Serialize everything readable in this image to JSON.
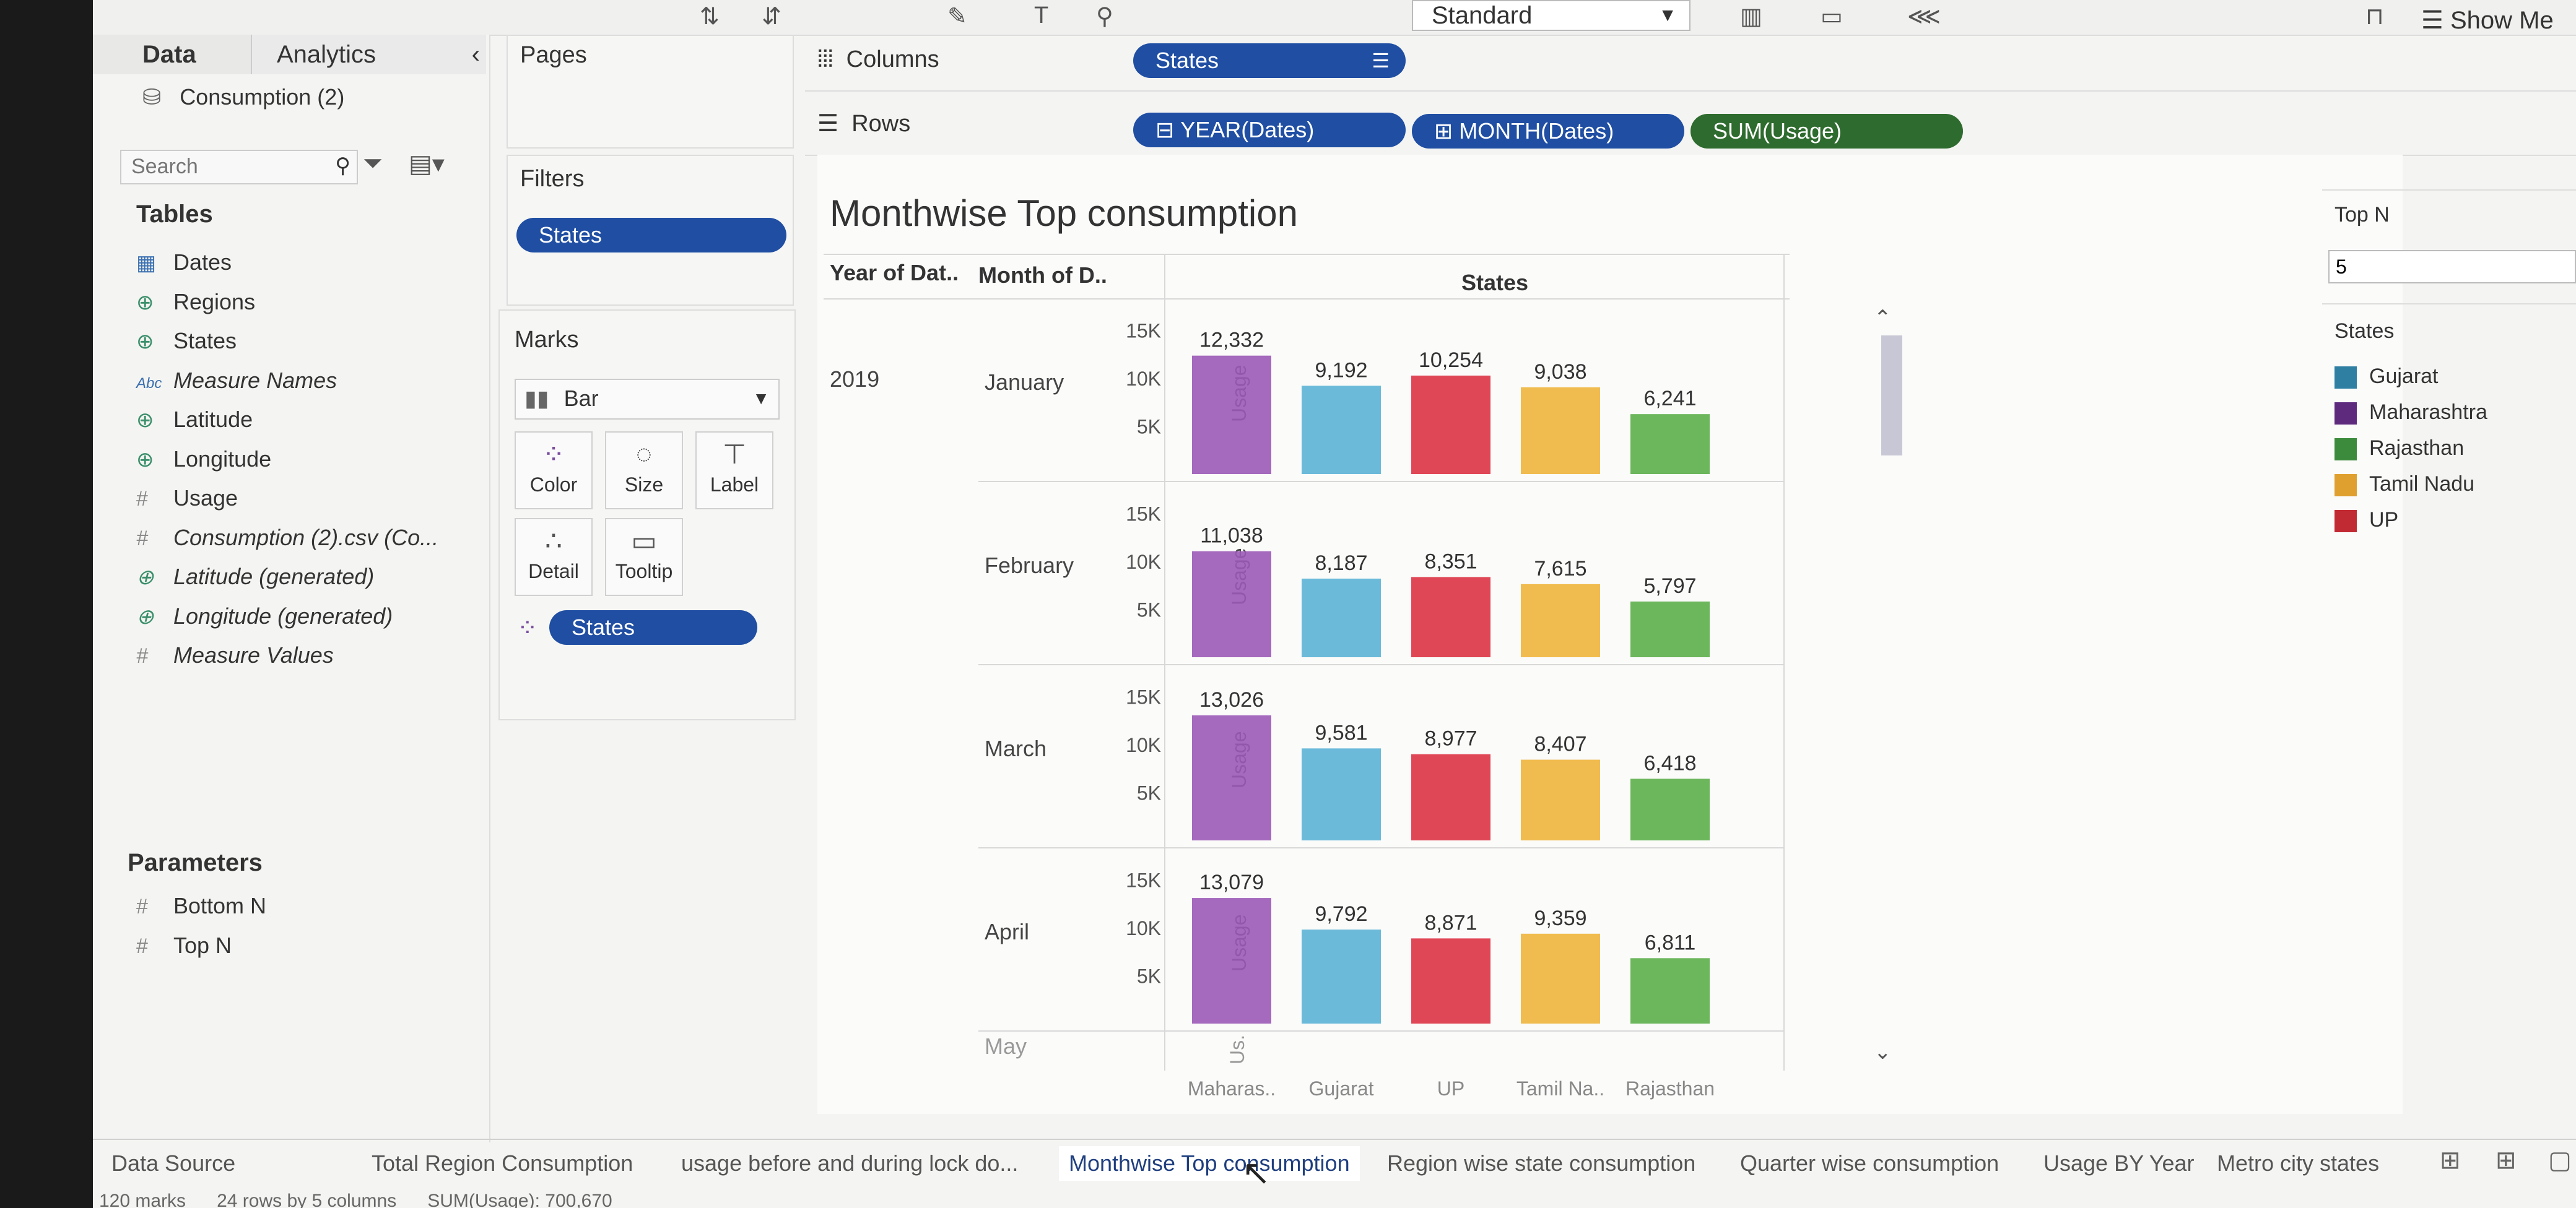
{
  "toolbar": {
    "view_size": "Standard",
    "show_me": "Show Me"
  },
  "left_panel": {
    "tabs": [
      "Data",
      "Analytics"
    ],
    "datasource": "Consumption (2)",
    "search_placeholder": "Search",
    "tables_title": "Tables",
    "fields": [
      {
        "icon": "calendar-icon",
        "glyph": "▦",
        "label": "Dates",
        "italic": false
      },
      {
        "icon": "globe-icon",
        "glyph": "⊕",
        "label": "Regions",
        "italic": false
      },
      {
        "icon": "globe-icon",
        "glyph": "⊕",
        "label": "States",
        "italic": false
      },
      {
        "icon": "abc-icon",
        "glyph": "Abc",
        "label": "Measure Names",
        "italic": true
      },
      {
        "icon": "globe-icon",
        "glyph": "⊕",
        "label": "Latitude",
        "italic": false
      },
      {
        "icon": "globe-icon",
        "glyph": "⊕",
        "label": "Longitude",
        "italic": false
      },
      {
        "icon": "hash-icon",
        "glyph": "#",
        "label": "Usage",
        "italic": false
      },
      {
        "icon": "hash-icon",
        "glyph": "#",
        "label": "Consumption (2).csv (Co...",
        "italic": true
      },
      {
        "icon": "globe-icon",
        "glyph": "⊕",
        "label": "Latitude (generated)",
        "italic": true
      },
      {
        "icon": "globe-icon",
        "glyph": "⊕",
        "label": "Longitude (generated)",
        "italic": true
      },
      {
        "icon": "hash-icon",
        "glyph": "#",
        "label": "Measure Values",
        "italic": true
      }
    ],
    "parameters_title": "Parameters",
    "parameters": [
      "Bottom N",
      "Top N"
    ]
  },
  "pages_title": "Pages",
  "filters": {
    "title": "Filters",
    "pill": "States"
  },
  "marks": {
    "title": "Marks",
    "type": "Bar",
    "buttons": [
      "Color",
      "Size",
      "Label",
      "Detail",
      "Tooltip"
    ],
    "pill": "States"
  },
  "shelves": {
    "columns_label": "Columns",
    "rows_label": "Rows",
    "columns_pill": "States",
    "rows_pills": [
      "YEAR(Dates)",
      "MONTH(Dates)",
      "SUM(Usage)"
    ]
  },
  "viz": {
    "title": "Monthwise Top consumption",
    "col_header_year": "Year of Dat..",
    "col_header_month": "Month of D..",
    "col_header_states": "States",
    "year": "2019",
    "axis_label": "Usage",
    "axis_label_short": "Us.",
    "partial_month": "May",
    "x_labels": [
      "Maharas..",
      "Gujarat",
      "UP",
      "Tamil Na..",
      "Rajasthan"
    ]
  },
  "chart_data": {
    "type": "bar",
    "title": "Monthwise Top consumption",
    "ylabel": "Usage",
    "yticks": [
      "5K",
      "10K",
      "15K"
    ],
    "ylim": [
      0,
      16500
    ],
    "categories": [
      "Maharashtra",
      "Gujarat",
      "UP",
      "Tamil Nadu",
      "Rajasthan"
    ],
    "colors": [
      "#9b59b6",
      "#5bb3d6",
      "#dd3344",
      "#f0b53c",
      "#5cae4a"
    ],
    "series": [
      {
        "name": "January",
        "labels": [
          "12,332",
          "9,192",
          "10,254",
          "9,038",
          "6,241"
        ],
        "values": [
          12332,
          9192,
          10254,
          9038,
          6241
        ]
      },
      {
        "name": "February",
        "labels": [
          "11,038",
          "8,187",
          "8,351",
          "7,615",
          "5,797"
        ],
        "values": [
          11038,
          8187,
          8351,
          7615,
          5797
        ]
      },
      {
        "name": "March",
        "labels": [
          "13,026",
          "9,581",
          "8,977",
          "8,407",
          "6,418"
        ],
        "values": [
          13026,
          9581,
          8977,
          8407,
          6418
        ]
      },
      {
        "name": "April",
        "labels": [
          "13,079",
          "9,792",
          "8,871",
          "9,359",
          "6,811"
        ],
        "values": [
          13079,
          9792,
          8871,
          9359,
          6811
        ]
      }
    ]
  },
  "top_n": {
    "title": "Top N",
    "value": "5"
  },
  "legend": {
    "title": "States",
    "items": [
      {
        "label": "Gujarat",
        "color": "#2f7fa3"
      },
      {
        "label": "Maharashtra",
        "color": "#5e2a7e"
      },
      {
        "label": "Rajasthan",
        "color": "#3c8a3c"
      },
      {
        "label": "Tamil Nadu",
        "color": "#e0a030"
      },
      {
        "label": "UP",
        "color": "#c22a33"
      }
    ]
  },
  "sheet_tabs": [
    "Data Source",
    "Total Region Consumption",
    "usage before and during lock do...",
    "Monthwise Top consumption",
    "Region wise state consumption",
    "Quarter wise consumption",
    "Usage BY Year",
    "Metro city states"
  ],
  "status_bar": {
    "marks": "120 marks",
    "rows": "24 rows by 5 columns",
    "sum": "SUM(Usage): 700,670"
  }
}
